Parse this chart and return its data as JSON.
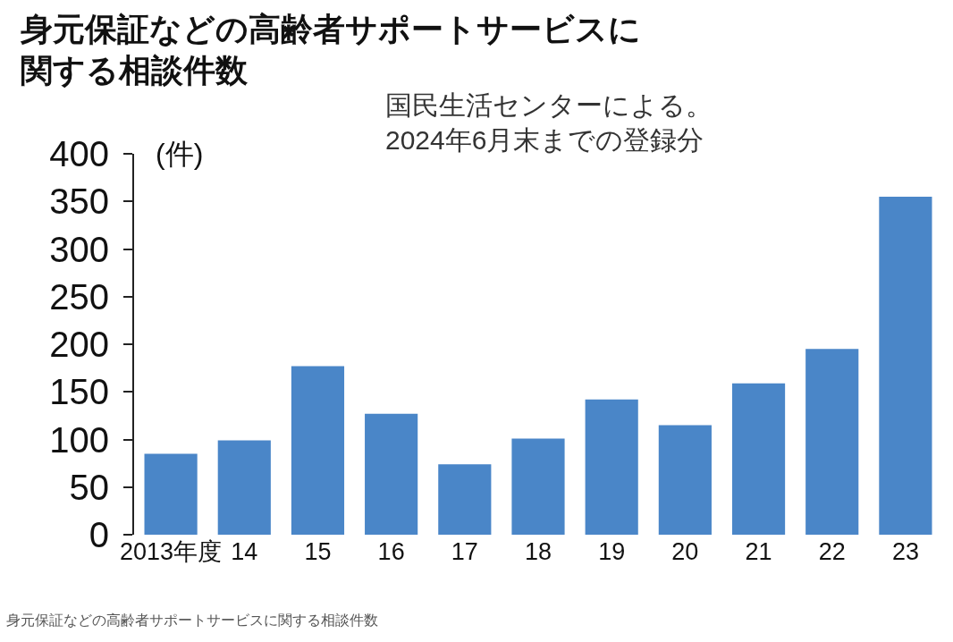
{
  "chart_data": {
    "type": "bar",
    "title": "身元保証などの高齢者サポートサービスに関する相談件数",
    "subtitle": "国民生活センターによる。\n2024年6月末までの登録分",
    "ylabel": "(件)",
    "annotations": [
      "身元保証などの高齢者サポートサービスに関する相談件数"
    ],
    "categories": [
      "2013年度",
      "14",
      "15",
      "16",
      "17",
      "18",
      "19",
      "20",
      "21",
      "22",
      "23"
    ],
    "values": [
      85,
      99,
      177,
      127,
      74,
      101,
      142,
      115,
      159,
      195,
      355
    ],
    "color": "#4a86c8",
    "ylim": [
      0,
      400
    ],
    "yticks": [
      0,
      50,
      100,
      150,
      200,
      250,
      300,
      350,
      400
    ]
  }
}
